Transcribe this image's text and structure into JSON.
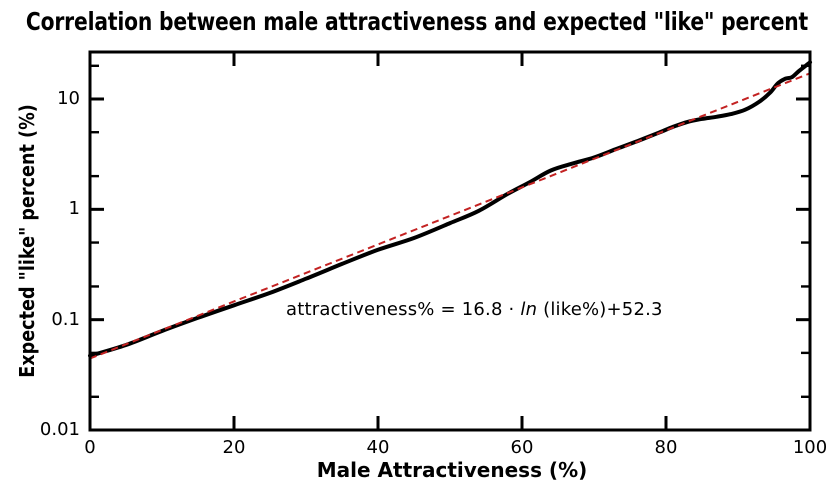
{
  "header": {
    "title": "Correlation between male attractiveness and expected \"like\" percent"
  },
  "annotation": {
    "prefix": "attractiveness% = 16.8 · ",
    "italic": "ln",
    "suffix": " (like%)+52.3"
  },
  "colors": {
    "curve": "#000000",
    "fit_line": "#c32222",
    "axis": "#000000",
    "background": "#ffffff",
    "text": "#000000"
  },
  "chart_data": {
    "type": "line",
    "title": "Correlation between male attractiveness and expected \"like\" percent",
    "xlabel": "Male Attractiveness (%)",
    "ylabel": "Expected \"like\" percent (%)",
    "grid": false,
    "legend": "none",
    "x_axis": {
      "range": [
        0,
        100
      ],
      "ticks": [
        0,
        20,
        40,
        60,
        80,
        100
      ],
      "tick_labels": [
        "0",
        "20",
        "40",
        "60",
        "80",
        "100"
      ]
    },
    "y_axis": {
      "scale": "log",
      "range": [
        0.01,
        26.6
      ],
      "major_ticks": [
        10,
        1,
        0.1,
        0.01
      ],
      "major_tick_labels": [
        "10",
        "1",
        "0.1",
        "0.01"
      ],
      "minor_ticks": [
        20,
        5,
        2,
        0.5,
        0.2,
        0.05,
        0.02
      ]
    },
    "series": [
      {
        "name": "expected like percent curve",
        "style": "solid",
        "color": "#000000",
        "x": [
          0,
          5,
          10,
          15,
          20,
          25,
          30,
          35,
          40,
          45,
          50,
          54,
          58,
          61,
          64,
          67,
          70,
          73,
          76,
          79,
          81,
          83,
          85,
          87,
          89,
          91,
          93,
          94.5,
          95.5,
          96.5,
          97.5,
          98.5,
          100
        ],
        "y": [
          0.047,
          0.059,
          0.079,
          0.104,
          0.135,
          0.175,
          0.235,
          0.32,
          0.43,
          0.55,
          0.75,
          0.97,
          1.38,
          1.75,
          2.25,
          2.6,
          2.95,
          3.5,
          4.15,
          4.95,
          5.6,
          6.2,
          6.6,
          6.9,
          7.3,
          8.0,
          9.5,
          11.5,
          13.8,
          15.2,
          15.8,
          18.0,
          21.5
        ]
      },
      {
        "name": "log-linear fit",
        "style": "dashed",
        "color": "#c32222",
        "equation_text": "attractiveness% = 16.8 · ln (like%)+52.3",
        "fit_params": {
          "slope": 16.8,
          "intercept": 52.3
        },
        "x_domain": [
          0,
          100
        ]
      }
    ]
  }
}
